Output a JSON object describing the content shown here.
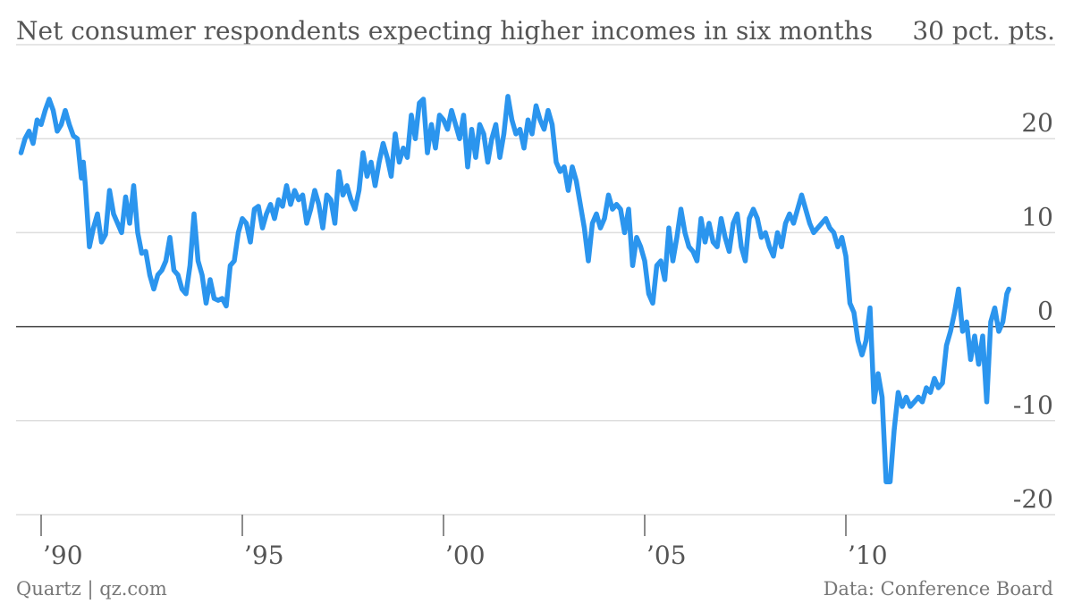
{
  "footer": {
    "source_left": "Quartz | qz.com",
    "source_right": "Data: Conference Board"
  },
  "colors": {
    "series": "#2b95ee",
    "gridline": "#dddddd",
    "zero_line": "#444444",
    "text": "#555555"
  },
  "chart_data": {
    "type": "line",
    "title": "Net consumer respondents expecting higher incomes in six months",
    "unit_label": "30 pct. pts.",
    "xlabel": "",
    "ylabel": "",
    "x_range": [
      1989.5,
      2014.2
    ],
    "ylim": [
      -20,
      30
    ],
    "y_ticks": [
      -20,
      -10,
      0,
      10,
      20
    ],
    "y_tick_labels": [
      "-20",
      "-10",
      "0",
      "10",
      "20"
    ],
    "x_ticks": [
      1990,
      1995,
      2000,
      2005,
      2010
    ],
    "x_tick_labels": [
      "’90",
      "’95",
      "’00",
      "’05",
      "’10"
    ],
    "grid": true,
    "legend": "none",
    "series": [
      {
        "points": [
          [
            1989.5,
            18.5
          ],
          [
            1989.6,
            20.0
          ],
          [
            1989.7,
            20.8
          ],
          [
            1989.8,
            19.5
          ],
          [
            1989.9,
            22.0
          ],
          [
            1990.0,
            21.5
          ],
          [
            1990.1,
            23.0
          ],
          [
            1990.2,
            24.2
          ],
          [
            1990.3,
            23.0
          ],
          [
            1990.4,
            20.8
          ],
          [
            1990.5,
            21.5
          ],
          [
            1990.6,
            23.0
          ],
          [
            1990.7,
            21.5
          ],
          [
            1990.8,
            20.3
          ],
          [
            1990.9,
            20.0
          ],
          [
            1991.0,
            15.8
          ],
          [
            1991.05,
            17.5
          ],
          [
            1991.1,
            15.0
          ],
          [
            1991.2,
            8.5
          ],
          [
            1991.3,
            10.5
          ],
          [
            1991.4,
            12.0
          ],
          [
            1991.5,
            9.0
          ],
          [
            1991.6,
            9.8
          ],
          [
            1991.7,
            14.5
          ],
          [
            1991.8,
            12.0
          ],
          [
            1991.9,
            11.0
          ],
          [
            1992.0,
            10.0
          ],
          [
            1992.1,
            13.8
          ],
          [
            1992.2,
            11.0
          ],
          [
            1992.3,
            15.0
          ],
          [
            1992.4,
            10.0
          ],
          [
            1992.5,
            7.8
          ],
          [
            1992.6,
            8.0
          ],
          [
            1992.7,
            5.5
          ],
          [
            1992.8,
            4.0
          ],
          [
            1992.9,
            5.5
          ],
          [
            1993.0,
            6.0
          ],
          [
            1993.1,
            7.0
          ],
          [
            1993.2,
            9.5
          ],
          [
            1993.3,
            6.0
          ],
          [
            1993.4,
            5.5
          ],
          [
            1993.5,
            4.0
          ],
          [
            1993.6,
            3.5
          ],
          [
            1993.7,
            6.5
          ],
          [
            1993.8,
            12.0
          ],
          [
            1993.9,
            7.0
          ],
          [
            1994.0,
            5.5
          ],
          [
            1994.1,
            2.5
          ],
          [
            1994.2,
            5.0
          ],
          [
            1994.3,
            3.0
          ],
          [
            1994.4,
            2.8
          ],
          [
            1994.5,
            3.0
          ],
          [
            1994.6,
            2.2
          ],
          [
            1994.7,
            6.5
          ],
          [
            1994.8,
            7.0
          ],
          [
            1994.9,
            10.0
          ],
          [
            1995.0,
            11.5
          ],
          [
            1995.1,
            11.0
          ],
          [
            1995.2,
            9.0
          ],
          [
            1995.3,
            12.5
          ],
          [
            1995.4,
            12.8
          ],
          [
            1995.5,
            10.5
          ],
          [
            1995.6,
            12.0
          ],
          [
            1995.7,
            13.0
          ],
          [
            1995.8,
            11.5
          ],
          [
            1995.9,
            13.5
          ],
          [
            1996.0,
            12.8
          ],
          [
            1996.1,
            15.0
          ],
          [
            1996.2,
            13.0
          ],
          [
            1996.3,
            14.5
          ],
          [
            1996.4,
            13.5
          ],
          [
            1996.5,
            14.0
          ],
          [
            1996.6,
            11.0
          ],
          [
            1996.7,
            12.5
          ],
          [
            1996.8,
            14.5
          ],
          [
            1996.9,
            13.0
          ],
          [
            1997.0,
            10.5
          ],
          [
            1997.1,
            14.0
          ],
          [
            1997.2,
            13.5
          ],
          [
            1997.3,
            11.0
          ],
          [
            1997.4,
            16.5
          ],
          [
            1997.5,
            14.0
          ],
          [
            1997.6,
            15.0
          ],
          [
            1997.7,
            13.5
          ],
          [
            1997.8,
            12.5
          ],
          [
            1997.9,
            14.5
          ],
          [
            1998.0,
            18.5
          ],
          [
            1998.1,
            16.0
          ],
          [
            1998.2,
            17.5
          ],
          [
            1998.3,
            15.0
          ],
          [
            1998.4,
            17.5
          ],
          [
            1998.5,
            19.5
          ],
          [
            1998.6,
            18.0
          ],
          [
            1998.7,
            16.0
          ],
          [
            1998.8,
            20.5
          ],
          [
            1998.9,
            17.5
          ],
          [
            1999.0,
            19.0
          ],
          [
            1999.1,
            18.0
          ],
          [
            1999.2,
            22.5
          ],
          [
            1999.3,
            20.0
          ],
          [
            1999.4,
            23.8
          ],
          [
            1999.5,
            24.2
          ],
          [
            1999.6,
            18.5
          ],
          [
            1999.7,
            21.5
          ],
          [
            1999.8,
            19.0
          ],
          [
            1999.9,
            22.5
          ],
          [
            2000.0,
            22.0
          ],
          [
            2000.1,
            21.0
          ],
          [
            2000.2,
            23.0
          ],
          [
            2000.3,
            21.5
          ],
          [
            2000.4,
            20.0
          ],
          [
            2000.5,
            22.5
          ],
          [
            2000.6,
            17.0
          ],
          [
            2000.7,
            21.0
          ],
          [
            2000.8,
            18.0
          ],
          [
            2000.9,
            21.5
          ],
          [
            2001.0,
            20.5
          ],
          [
            2001.1,
            17.5
          ],
          [
            2001.2,
            20.0
          ],
          [
            2001.3,
            21.5
          ],
          [
            2001.4,
            18.0
          ],
          [
            2001.5,
            20.5
          ],
          [
            2001.6,
            24.5
          ],
          [
            2001.7,
            22.0
          ],
          [
            2001.8,
            20.5
          ],
          [
            2001.9,
            21.0
          ],
          [
            2002.0,
            19.0
          ],
          [
            2002.1,
            22.0
          ],
          [
            2002.2,
            20.5
          ],
          [
            2002.3,
            23.5
          ],
          [
            2002.4,
            22.0
          ],
          [
            2002.5,
            21.0
          ],
          [
            2002.6,
            23.0
          ],
          [
            2002.7,
            21.5
          ],
          [
            2002.8,
            17.5
          ],
          [
            2002.9,
            16.5
          ],
          [
            2003.0,
            17.0
          ],
          [
            2003.1,
            14.5
          ],
          [
            2003.2,
            17.0
          ],
          [
            2003.3,
            15.5
          ],
          [
            2003.4,
            13.0
          ],
          [
            2003.5,
            10.5
          ],
          [
            2003.6,
            7.0
          ],
          [
            2003.7,
            11.0
          ],
          [
            2003.8,
            12.0
          ],
          [
            2003.9,
            10.5
          ],
          [
            2004.0,
            11.5
          ],
          [
            2004.1,
            14.0
          ],
          [
            2004.2,
            12.5
          ],
          [
            2004.3,
            13.0
          ],
          [
            2004.4,
            12.5
          ],
          [
            2004.5,
            10.0
          ],
          [
            2004.6,
            12.5
          ],
          [
            2004.7,
            6.5
          ],
          [
            2004.8,
            9.5
          ],
          [
            2004.9,
            8.5
          ],
          [
            2005.0,
            7.0
          ],
          [
            2005.1,
            3.5
          ],
          [
            2005.2,
            2.5
          ],
          [
            2005.3,
            6.5
          ],
          [
            2005.4,
            7.0
          ],
          [
            2005.5,
            5.0
          ],
          [
            2005.6,
            10.5
          ],
          [
            2005.7,
            7.0
          ],
          [
            2005.8,
            9.5
          ],
          [
            2005.9,
            12.5
          ],
          [
            2006.0,
            10.0
          ],
          [
            2006.1,
            8.5
          ],
          [
            2006.2,
            8.0
          ],
          [
            2006.3,
            7.0
          ],
          [
            2006.4,
            11.5
          ],
          [
            2006.5,
            9.0
          ],
          [
            2006.6,
            11.0
          ],
          [
            2006.7,
            9.0
          ],
          [
            2006.8,
            8.5
          ],
          [
            2006.9,
            11.5
          ],
          [
            2007.0,
            9.5
          ],
          [
            2007.1,
            8.0
          ],
          [
            2007.2,
            11.0
          ],
          [
            2007.3,
            12.0
          ],
          [
            2007.4,
            8.5
          ],
          [
            2007.5,
            7.0
          ],
          [
            2007.6,
            11.5
          ],
          [
            2007.7,
            12.5
          ],
          [
            2007.8,
            11.5
          ],
          [
            2007.9,
            9.5
          ],
          [
            2008.0,
            10.0
          ],
          [
            2008.1,
            8.5
          ],
          [
            2008.2,
            7.5
          ],
          [
            2008.3,
            10.0
          ],
          [
            2008.4,
            8.5
          ],
          [
            2008.5,
            11.0
          ],
          [
            2008.6,
            12.0
          ],
          [
            2008.7,
            11.0
          ],
          [
            2008.8,
            12.5
          ],
          [
            2008.9,
            14.0
          ],
          [
            2009.0,
            12.5
          ],
          [
            2009.1,
            11.0
          ],
          [
            2009.2,
            10.0
          ],
          [
            2009.3,
            10.5
          ],
          [
            2009.4,
            11.0
          ],
          [
            2009.5,
            11.5
          ],
          [
            2009.6,
            10.5
          ],
          [
            2009.7,
            10.0
          ],
          [
            2009.8,
            8.5
          ],
          [
            2009.9,
            9.5
          ],
          [
            2010.0,
            7.5
          ],
          [
            2010.1,
            2.5
          ],
          [
            2010.2,
            1.5
          ],
          [
            2010.3,
            -1.5
          ],
          [
            2010.4,
            -3.0
          ],
          [
            2010.5,
            -1.5
          ],
          [
            2010.6,
            2.0
          ],
          [
            2010.7,
            -8.0
          ],
          [
            2010.8,
            -5.0
          ],
          [
            2010.9,
            -7.5
          ],
          [
            2011.0,
            -16.5
          ],
          [
            2011.1,
            -16.5
          ],
          [
            2011.2,
            -11.0
          ],
          [
            2011.3,
            -7.0
          ],
          [
            2011.4,
            -8.5
          ],
          [
            2011.5,
            -7.5
          ],
          [
            2011.6,
            -8.5
          ],
          [
            2011.7,
            -8.0
          ],
          [
            2011.8,
            -7.5
          ],
          [
            2011.9,
            -8.0
          ],
          [
            2012.0,
            -6.5
          ],
          [
            2012.1,
            -7.0
          ],
          [
            2012.2,
            -5.5
          ],
          [
            2012.3,
            -6.5
          ],
          [
            2012.4,
            -6.0
          ],
          [
            2012.5,
            -2.0
          ],
          [
            2012.6,
            -0.5
          ],
          [
            2012.7,
            1.5
          ],
          [
            2012.8,
            4.0
          ],
          [
            2012.9,
            -0.5
          ],
          [
            2013.0,
            0.5
          ],
          [
            2013.1,
            -3.5
          ],
          [
            2013.2,
            -1.0
          ],
          [
            2013.3,
            -4.0
          ],
          [
            2013.4,
            -1.0
          ],
          [
            2013.5,
            -8.0
          ],
          [
            2013.6,
            0.5
          ],
          [
            2013.7,
            2.0
          ],
          [
            2013.8,
            -0.5
          ],
          [
            2013.9,
            0.5
          ],
          [
            2014.0,
            3.5
          ],
          [
            2014.05,
            4.0
          ]
        ]
      }
    ]
  }
}
